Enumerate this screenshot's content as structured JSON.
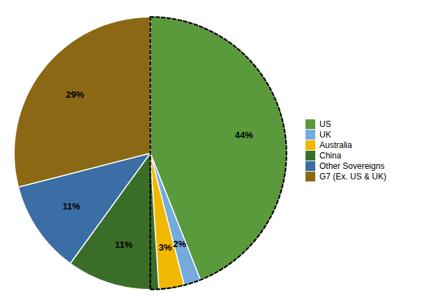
{
  "chart_data": {
    "type": "pie",
    "categories": [
      "US",
      "UK",
      "Australia",
      "China",
      "Other Sovereigns",
      "G7 (Ex. US & UK)"
    ],
    "values": [
      44,
      2,
      3,
      11,
      11,
      29
    ],
    "value_labels": [
      "44%",
      "2%",
      "3%",
      "11%",
      "11%",
      "29%"
    ],
    "colors": [
      "#5B9A3C",
      "#74AADC",
      "#F0B800",
      "#3A6E28",
      "#3A6EA5",
      "#8B6914"
    ],
    "data_labels": true,
    "legend": "right",
    "tick_labels": false
  }
}
